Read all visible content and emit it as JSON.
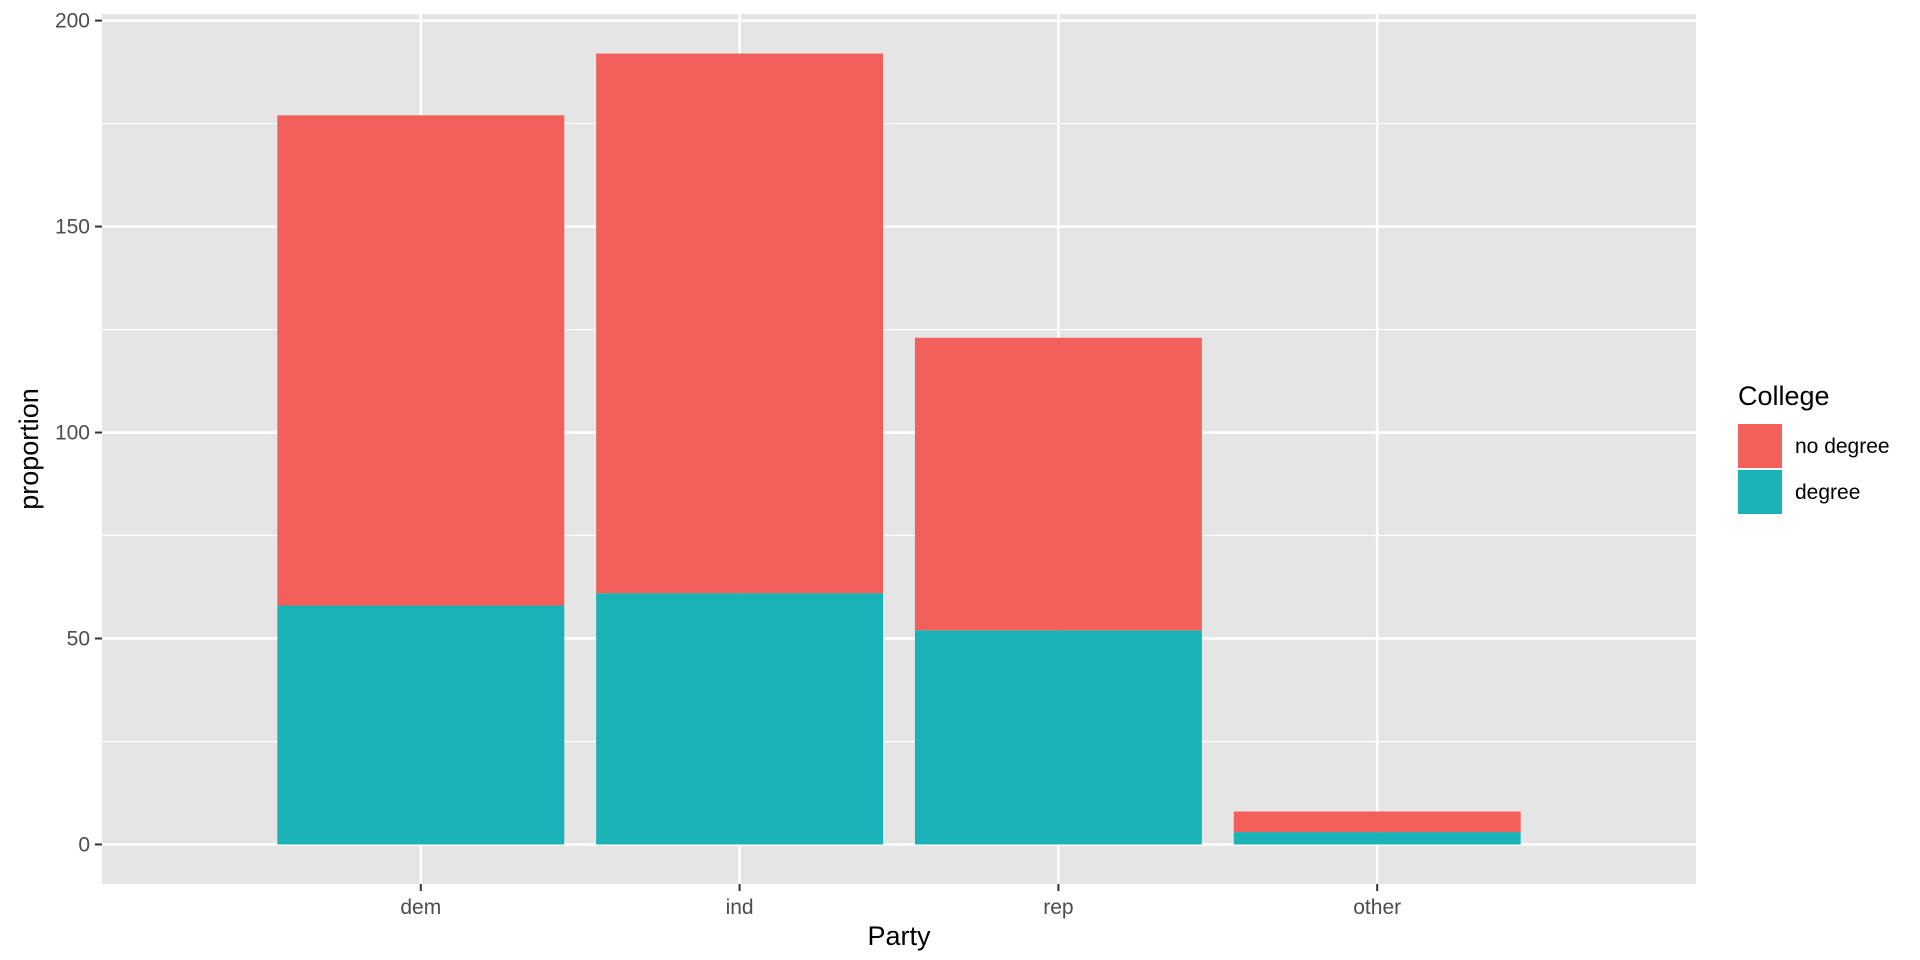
{
  "chart_data": {
    "type": "bar",
    "stacked": true,
    "categories": [
      "dem",
      "ind",
      "rep",
      "other"
    ],
    "series": [
      {
        "name": "degree",
        "values": [
          58,
          61,
          52,
          3
        ],
        "color": "#19B2B7"
      },
      {
        "name": "no degree",
        "values": [
          119,
          131,
          71,
          5
        ],
        "color": "#F35F5A"
      }
    ],
    "xlabel": "Party",
    "ylabel": "proportion",
    "ylim": [
      -9.6,
      201.6
    ],
    "yticks": [
      0,
      50,
      100,
      150,
      200
    ],
    "grid": true,
    "legend": {
      "title": "College",
      "placement": "right",
      "entries": [
        {
          "label": "no degree",
          "color": "#F35F5A"
        },
        {
          "label": "degree",
          "color": "#19B2B7"
        }
      ]
    },
    "panel_color": "#E5E5E5",
    "grid_color": "#FFFFFF"
  }
}
